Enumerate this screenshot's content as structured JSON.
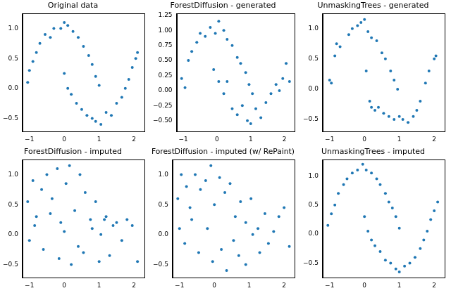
{
  "chart_data": [
    {
      "type": "scatter",
      "title": "Original data",
      "color": "#1f77b4",
      "marker": "circle",
      "xlim": [
        -1.2,
        2.3
      ],
      "ylim": [
        -0.72,
        1.25
      ],
      "xticks": [
        {
          "value": -1,
          "label": "−1"
        },
        0,
        1,
        2
      ],
      "yticks": [
        {
          "value": -0.5,
          "label": "−0.5"
        },
        {
          "value": 0,
          "label": "0.0"
        },
        0.5,
        {
          "value": 1,
          "label": "1.0"
        }
      ],
      "x": [
        -1.05,
        -1.0,
        -0.9,
        -0.8,
        -0.7,
        -0.55,
        -0.4,
        -0.3,
        -0.1,
        0.0,
        0.1,
        0.25,
        0.4,
        0.55,
        0.7,
        0.8,
        0.9,
        1.0,
        0.0,
        0.1,
        0.2,
        0.35,
        0.5,
        0.65,
        0.8,
        0.9,
        1.05,
        1.2,
        1.35,
        1.5,
        1.65,
        1.75,
        1.85,
        1.95,
        2.05,
        2.1
      ],
      "values": [
        0.1,
        0.3,
        0.45,
        0.6,
        0.75,
        0.9,
        0.85,
        1.0,
        1.0,
        1.1,
        1.05,
        0.95,
        0.85,
        0.7,
        0.55,
        0.4,
        0.2,
        0.05,
        0.25,
        0.0,
        -0.1,
        -0.25,
        -0.35,
        -0.45,
        -0.5,
        -0.55,
        -0.6,
        -0.4,
        -0.45,
        -0.25,
        -0.15,
        0.0,
        0.15,
        0.35,
        0.5,
        0.6
      ]
    },
    {
      "type": "scatter",
      "title": "ForestDiffusion - generated",
      "color": "#1f77b4",
      "marker": "circle",
      "xlim": [
        -1.2,
        2.3
      ],
      "ylim": [
        -0.68,
        1.28
      ],
      "xticks": [
        {
          "value": -1,
          "label": "−1"
        },
        0,
        1,
        2
      ],
      "yticks": [
        {
          "value": -0.5,
          "label": "−0.50"
        },
        {
          "value": -0.25,
          "label": "−0.25"
        },
        {
          "value": 0,
          "label": "0.00"
        },
        0.25,
        {
          "value": 0.5,
          "label": "0.50"
        },
        0.75,
        {
          "value": 1,
          "label": "1.00"
        },
        1.25
      ],
      "x": [
        -1.05,
        -0.95,
        -0.85,
        -0.75,
        -0.6,
        -0.5,
        -0.35,
        -0.2,
        -0.05,
        0.05,
        0.2,
        0.3,
        0.45,
        0.6,
        0.7,
        0.85,
        0.95,
        1.05,
        -0.1,
        0.05,
        0.2,
        0.3,
        0.45,
        0.6,
        0.75,
        0.9,
        1.0,
        1.15,
        1.3,
        1.45,
        1.6,
        1.75,
        1.85,
        1.95,
        2.05,
        2.15
      ],
      "values": [
        0.2,
        0.05,
        0.5,
        0.65,
        0.8,
        0.95,
        0.9,
        1.05,
        0.95,
        1.15,
        1.0,
        0.85,
        0.75,
        0.55,
        0.45,
        0.3,
        0.1,
        -0.05,
        0.35,
        0.15,
        -0.05,
        0.15,
        -0.3,
        -0.4,
        -0.25,
        -0.5,
        -0.55,
        -0.3,
        -0.45,
        -0.2,
        -0.05,
        0.1,
        0.0,
        0.2,
        0.45,
        0.15
      ]
    },
    {
      "type": "scatter",
      "title": "UnmaskingTrees - generated",
      "color": "#1f77b4",
      "marker": "circle",
      "xlim": [
        -1.2,
        2.3
      ],
      "ylim": [
        -0.7,
        1.25
      ],
      "xticks": [
        {
          "value": -1,
          "label": "−1"
        },
        0,
        1,
        2
      ],
      "yticks": [
        {
          "value": -0.5,
          "label": "−0.5"
        },
        {
          "value": 0,
          "label": "0.0"
        },
        0.5,
        {
          "value": 1,
          "label": "1.0"
        }
      ],
      "x": [
        -1.0,
        -0.95,
        -0.85,
        -0.8,
        -0.7,
        -0.45,
        -0.35,
        -0.2,
        -0.1,
        0.0,
        0.1,
        0.2,
        0.35,
        0.5,
        0.6,
        0.75,
        0.85,
        0.95,
        0.05,
        0.15,
        0.2,
        0.3,
        0.4,
        0.55,
        0.7,
        0.85,
        1.0,
        1.1,
        1.25,
        1.4,
        1.5,
        1.6,
        1.75,
        1.85,
        2.0,
        2.05
      ],
      "values": [
        0.15,
        0.1,
        0.55,
        0.75,
        0.7,
        0.9,
        1.0,
        1.05,
        1.1,
        1.15,
        0.95,
        0.85,
        0.8,
        0.6,
        0.5,
        0.3,
        0.15,
        0.0,
        0.3,
        -0.2,
        -0.3,
        -0.35,
        -0.3,
        -0.4,
        -0.45,
        -0.5,
        -0.45,
        -0.5,
        -0.55,
        -0.45,
        -0.35,
        -0.2,
        0.1,
        0.3,
        0.5,
        0.55
      ]
    },
    {
      "type": "scatter",
      "title": "ForestDiffusion - imputed",
      "color": "#1f77b4",
      "marker": "circle",
      "xlim": [
        -1.2,
        2.3
      ],
      "ylim": [
        -0.72,
        1.25
      ],
      "xticks": [
        {
          "value": -1,
          "label": "−1"
        },
        0,
        1,
        2
      ],
      "yticks": [
        {
          "value": -0.5,
          "label": "−0.5"
        },
        {
          "value": 0,
          "label": "0.0"
        },
        0.5,
        {
          "value": 1,
          "label": "1.0"
        }
      ],
      "x": [
        -1.05,
        -0.9,
        -0.8,
        -0.65,
        -0.5,
        -0.35,
        -0.2,
        -0.1,
        0.05,
        0.15,
        0.3,
        0.45,
        0.6,
        0.75,
        0.9,
        1.05,
        1.2,
        1.4,
        -1.0,
        -0.85,
        -0.6,
        -0.4,
        -0.15,
        0.0,
        0.2,
        0.4,
        0.55,
        0.8,
        1.0,
        1.15,
        1.3,
        1.5,
        1.65,
        1.8,
        1.95,
        2.1
      ],
      "values": [
        0.55,
        0.9,
        0.3,
        0.75,
        1.0,
        0.6,
        1.1,
        0.2,
        0.85,
        1.15,
        0.4,
        1.0,
        0.7,
        0.25,
        0.55,
        0.0,
        0.3,
        0.15,
        -0.1,
        0.15,
        -0.25,
        0.35,
        -0.4,
        0.05,
        -0.5,
        -0.2,
        -0.3,
        0.1,
        -0.45,
        0.25,
        -0.35,
        0.2,
        -0.1,
        0.25,
        0.15,
        -0.45
      ]
    },
    {
      "type": "scatter",
      "title": "ForestDiffusion - imputed (w/ RePaint)",
      "color": "#1f77b4",
      "marker": "circle",
      "xlim": [
        -1.2,
        2.3
      ],
      "ylim": [
        -0.72,
        1.25
      ],
      "xticks": [
        {
          "value": -1,
          "label": "−1"
        },
        0,
        1,
        2
      ],
      "yticks": [
        {
          "value": -0.5,
          "label": "−0.5"
        },
        {
          "value": 0,
          "label": "0.0"
        },
        0.5,
        {
          "value": 1,
          "label": "1.0"
        }
      ],
      "x": [
        -1.05,
        -0.95,
        -0.8,
        -0.7,
        -0.55,
        -0.4,
        -0.25,
        -0.1,
        0.0,
        0.15,
        0.3,
        0.45,
        0.6,
        0.75,
        0.9,
        1.05,
        1.25,
        1.45,
        -1.0,
        -0.85,
        -0.65,
        -0.45,
        -0.2,
        -0.05,
        0.2,
        0.35,
        0.55,
        0.7,
        0.9,
        1.1,
        1.3,
        1.55,
        1.7,
        1.85,
        2.0,
        2.15
      ],
      "values": [
        0.6,
        1.0,
        0.8,
        0.45,
        1.0,
        0.75,
        0.9,
        1.15,
        0.5,
        0.95,
        0.7,
        0.85,
        0.3,
        0.55,
        0.2,
        0.6,
        0.1,
        0.35,
        0.1,
        -0.15,
        0.25,
        -0.3,
        0.1,
        -0.45,
        -0.25,
        -0.6,
        -0.1,
        -0.35,
        -0.5,
        0.0,
        -0.3,
        -0.15,
        0.05,
        0.3,
        0.45,
        -0.2
      ]
    },
    {
      "type": "scatter",
      "title": "UnmaskingTrees - imputed",
      "color": "#1f77b4",
      "marker": "circle",
      "xlim": [
        -1.2,
        2.3
      ],
      "ylim": [
        -0.75,
        1.28
      ],
      "xticks": [
        {
          "value": -1,
          "label": "−1"
        },
        0,
        1,
        2
      ],
      "yticks": [
        {
          "value": -0.5,
          "label": "−0.5"
        },
        {
          "value": 0,
          "label": "0.0"
        },
        0.5,
        {
          "value": 1,
          "label": "1.0"
        }
      ],
      "x": [
        -1.05,
        -0.95,
        -0.85,
        -0.75,
        -0.6,
        -0.5,
        -0.35,
        -0.2,
        -0.05,
        0.05,
        0.2,
        0.35,
        0.45,
        0.6,
        0.7,
        0.8,
        0.9,
        1.0,
        0.0,
        0.1,
        0.2,
        0.3,
        0.45,
        0.6,
        0.75,
        0.9,
        1.0,
        1.15,
        1.3,
        1.45,
        1.6,
        1.7,
        1.8,
        1.9,
        2.0,
        2.1
      ],
      "values": [
        0.15,
        0.35,
        0.5,
        0.7,
        0.85,
        0.95,
        1.05,
        1.1,
        1.2,
        1.1,
        1.05,
        0.95,
        0.85,
        0.7,
        0.55,
        0.45,
        0.3,
        0.1,
        0.3,
        0.05,
        -0.1,
        -0.2,
        -0.3,
        -0.45,
        -0.5,
        -0.6,
        -0.65,
        -0.55,
        -0.5,
        -0.4,
        -0.25,
        -0.1,
        0.05,
        0.25,
        0.4,
        0.55
      ]
    }
  ]
}
